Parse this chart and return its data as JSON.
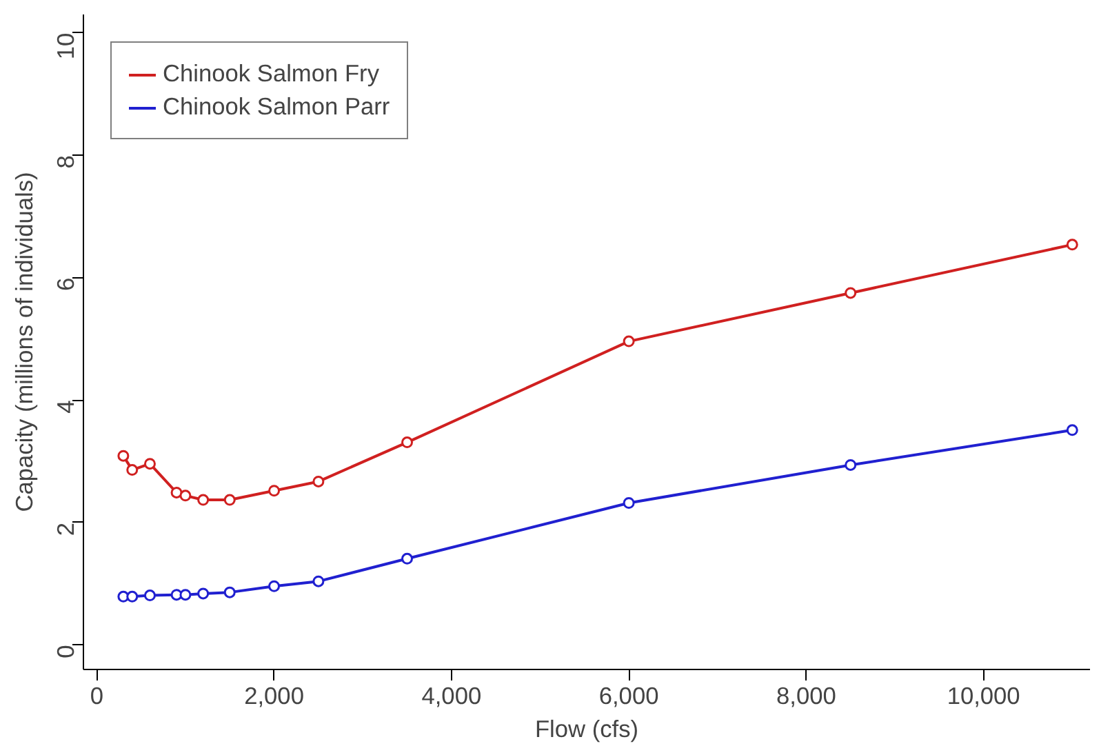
{
  "chart_data": {
    "type": "line",
    "xlabel": "Flow (cfs)",
    "ylabel": "Capacity (millions of individuals)",
    "x": [
      300,
      400,
      600,
      900,
      1000,
      1200,
      1500,
      2000,
      2500,
      3500,
      6000,
      8500,
      11000
    ],
    "series": [
      {
        "name": "Chinook Salmon Fry",
        "color": "#d02020",
        "values": [
          3.09,
          2.86,
          2.96,
          2.49,
          2.44,
          2.37,
          2.37,
          2.52,
          2.67,
          3.31,
          4.96,
          5.75,
          6.54
        ]
      },
      {
        "name": "Chinook Salmon Parr",
        "color": "#2020d0",
        "values": [
          0.79,
          0.79,
          0.81,
          0.82,
          0.82,
          0.84,
          0.86,
          0.96,
          1.04,
          1.41,
          2.32,
          2.94,
          3.51
        ]
      }
    ],
    "xlim": [
      -150,
      11200
    ],
    "ylim": [
      -0.4,
      10.3
    ],
    "xticks": [
      {
        "value": 0,
        "label": "0"
      },
      {
        "value": 2000,
        "label": "2,000"
      },
      {
        "value": 4000,
        "label": "4,000"
      },
      {
        "value": 6000,
        "label": "6,000"
      },
      {
        "value": 8000,
        "label": "8,000"
      },
      {
        "value": 10000,
        "label": "10,000"
      }
    ],
    "yticks": [
      0,
      2,
      4,
      6,
      8,
      10
    ],
    "grid": false,
    "legend": "top left",
    "marker": "circle",
    "line_style": "solid"
  }
}
